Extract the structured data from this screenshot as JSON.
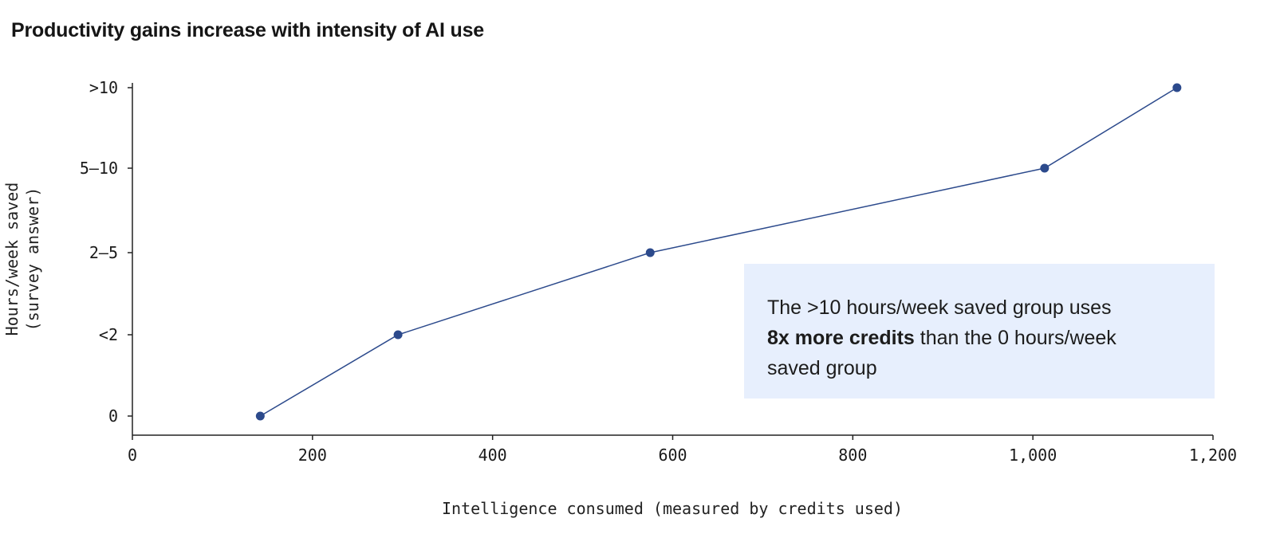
{
  "chart_data": {
    "type": "line",
    "title": "Productivity gains increase with intensity of AI use",
    "xlabel": "Intelligence consumed (measured by credits used)",
    "ylabel": [
      "Hours/week saved",
      "(survey answer)"
    ],
    "xlim": [
      0,
      1200
    ],
    "x_ticks": [
      {
        "value": 0,
        "label": "0"
      },
      {
        "value": 200,
        "label": "200"
      },
      {
        "value": 400,
        "label": "400"
      },
      {
        "value": 600,
        "label": "600"
      },
      {
        "value": 800,
        "label": "800"
      },
      {
        "value": 1000,
        "label": "1,000"
      },
      {
        "value": 1200,
        "label": "1,200"
      }
    ],
    "y_categories": [
      "0",
      "<2",
      "2–5",
      "5–10",
      ">10"
    ],
    "series": [
      {
        "x": [
          142,
          295,
          575,
          1013,
          1160
        ],
        "y": [
          "0",
          "<2",
          "2–5",
          "5–10",
          ">10"
        ]
      }
    ],
    "grid": false,
    "annotation": {
      "line1": "The >10 hours/week saved group uses",
      "bold": "8x more credits",
      "rest": " than the 0 hours/week",
      "line3": "saved group"
    },
    "colors": {
      "line": "#2c4a8c",
      "marker": "#2c4a8c",
      "callout_bg": "#e7effd",
      "axis": "#222222"
    }
  }
}
